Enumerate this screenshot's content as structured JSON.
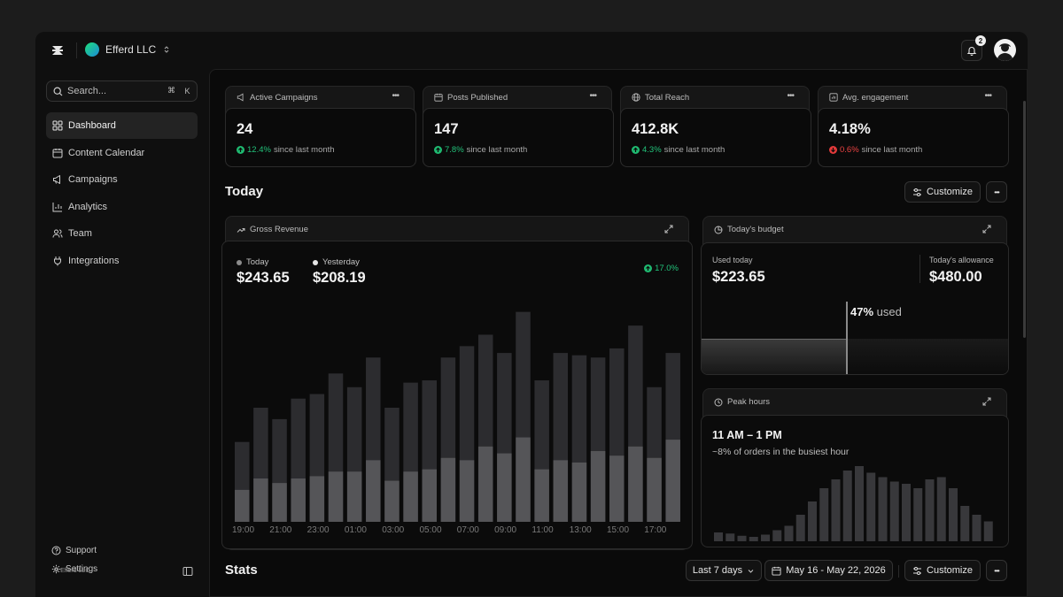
{
  "org": {
    "name": "Efferd LLC"
  },
  "notifications": {
    "count": "2"
  },
  "search": {
    "placeholder": "Search...",
    "kbd1": "⌘",
    "kbd2": "K"
  },
  "sidebar": {
    "items": [
      {
        "label": "Dashboard",
        "icon": "grid-icon",
        "active": true
      },
      {
        "label": "Content Calendar",
        "icon": "calendar-icon"
      },
      {
        "label": "Campaigns",
        "icon": "megaphone-icon"
      },
      {
        "label": "Analytics",
        "icon": "bar-chart-icon"
      },
      {
        "label": "Team",
        "icon": "users-icon"
      },
      {
        "label": "Integrations",
        "icon": "plug-icon"
      }
    ],
    "support": "Support",
    "settings": "Settings",
    "copyright": "© Efferd LLC"
  },
  "kpis": [
    {
      "title": "Active Campaigns",
      "value": "24",
      "delta": "12.4%",
      "direction": "up",
      "suffix": "since last month"
    },
    {
      "title": "Posts Published",
      "value": "147",
      "delta": "7.8%",
      "direction": "up",
      "suffix": "since last month"
    },
    {
      "title": "Total Reach",
      "value": "412.8K",
      "delta": "4.3%",
      "direction": "up",
      "suffix": "since last month"
    },
    {
      "title": "Avg. engagement",
      "value": "4.18%",
      "delta": "0.6%",
      "direction": "down",
      "suffix": "since last month"
    }
  ],
  "today": {
    "title": "Today",
    "customize": "Customize"
  },
  "gross_revenue": {
    "title": "Gross Revenue",
    "today_label": "Today",
    "today_value": "$243.65",
    "yesterday_label": "Yesterday",
    "yesterday_value": "$208.19",
    "change": "17.0%"
  },
  "budget": {
    "title": "Today's budget",
    "used_label": "Used today",
    "used_value": "$223.65",
    "allowance_label": "Today's allowance",
    "allowance_value": "$480.00",
    "used_pct": "47%",
    "used_word": "used",
    "used_fraction": 0.47
  },
  "peak": {
    "title": "Peak hours",
    "range": "11 AM – 1 PM",
    "note": "~8% of orders in the busiest hour"
  },
  "stats": {
    "title": "Stats",
    "period": "Last 7 days",
    "dates": "May 16 - May 22, 2026",
    "customize": "Customize"
  },
  "colors": {
    "up": "#22c27a",
    "down": "#ec4343",
    "accent": "#1fba71"
  },
  "chart_data": [
    {
      "type": "bar",
      "title": "Gross Revenue",
      "categories": [
        "19:00",
        "20:00",
        "21:00",
        "22:00",
        "23:00",
        "00:00",
        "01:00",
        "02:00",
        "03:00",
        "04:00",
        "05:00",
        "06:00",
        "07:00",
        "08:00",
        "09:00",
        "10:00",
        "11:00",
        "12:00",
        "13:00",
        "14:00",
        "15:00",
        "16:00",
        "17:00",
        "18:00"
      ],
      "tick_labels": [
        "19:00",
        "21:00",
        "23:00",
        "01:00",
        "03:00",
        "05:00",
        "07:00",
        "09:00",
        "11:00",
        "13:00",
        "15:00",
        "17:00"
      ],
      "series": [
        {
          "name": "Yesterday",
          "values": [
            35,
            50,
            45,
            54,
            56,
            65,
            59,
            72,
            50,
            61,
            62,
            72,
            77,
            82,
            74,
            92,
            62,
            74,
            73,
            72,
            76,
            86,
            59,
            74
          ]
        },
        {
          "name": "Today",
          "values": [
            14,
            19,
            17,
            19,
            20,
            22,
            22,
            27,
            18,
            22,
            23,
            28,
            27,
            33,
            30,
            37,
            23,
            27,
            26,
            31,
            29,
            33,
            28,
            36
          ]
        }
      ],
      "ylim": [
        0,
        100
      ],
      "grid": false
    },
    {
      "type": "bar",
      "title": "Peak hours",
      "values": [
        4,
        3.5,
        2.5,
        2,
        3,
        5,
        7,
        12,
        18,
        24,
        28,
        32,
        34,
        31,
        29,
        27,
        26,
        24,
        28,
        29,
        24,
        16,
        12,
        9
      ],
      "ylim": [
        0,
        40
      ]
    }
  ]
}
